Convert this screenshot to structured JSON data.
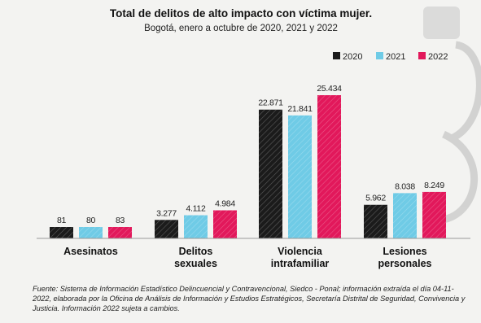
{
  "chart_data": {
    "type": "bar",
    "title": "Total de delitos de alto impacto con víctima mujer.",
    "subtitle": "Bogotá, enero a octubre de 2020, 2021 y 2022",
    "categories": [
      [
        "Asesinatos"
      ],
      [
        "Delitos",
        "sexuales"
      ],
      [
        "Violencia",
        "intrafamiliar"
      ],
      [
        "Lesiones",
        "personales"
      ]
    ],
    "series": [
      {
        "name": "2020",
        "values": [
          81,
          3277,
          22871,
          5962
        ],
        "labels": [
          "81",
          "3.277",
          "22.871",
          "5.962"
        ],
        "color": "#1b1b1b"
      },
      {
        "name": "2021",
        "values": [
          80,
          4112,
          21841,
          8038
        ],
        "labels": [
          "80",
          "4.112",
          "21.841",
          "8.038"
        ],
        "color": "#6fcbe6"
      },
      {
        "name": "2022",
        "values": [
          83,
          4984,
          25434,
          8249
        ],
        "labels": [
          "83",
          "4.984",
          "25.434",
          "8.249"
        ],
        "color": "#e2185b"
      }
    ],
    "legend_position": "top-right",
    "grid": false
  },
  "source_text": "Fuente: Sistema de Información Estadístico Delincuencial y Contravencional, Siedco - Ponal; información extraída el día 04-11-2022, elaborada por la Oficina de Análisis de Información y Estudios Estratégicos, Secretaría Distrital de Seguridad, Convivencia y Justicia. Información 2022 sujeta a cambios."
}
